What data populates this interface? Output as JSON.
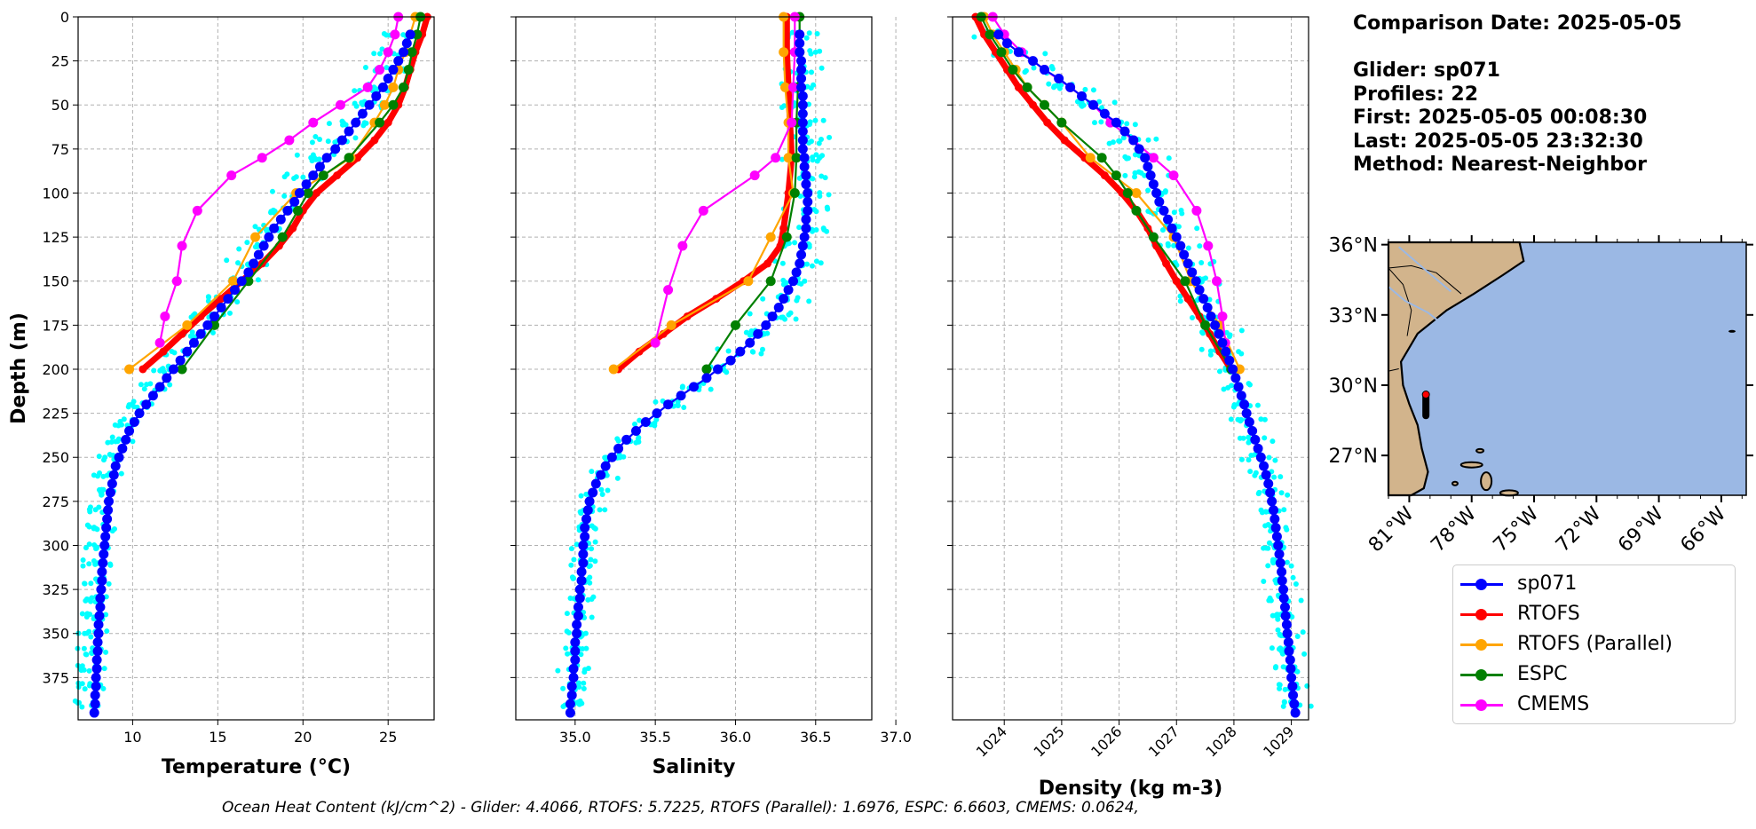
{
  "info": {
    "comparison_date": "Comparison Date: 2025-05-05",
    "glider": "Glider: sp071",
    "profiles": "Profiles: 22",
    "first": "First: 2025-05-05 00:08:30",
    "last": "Last: 2025-05-05 23:32:30",
    "method": "Method: Nearest-Neighbor"
  },
  "footer": "Ocean Heat Content (kJ/cm^2) - Glider: 4.4066,  RTOFS: 5.7225,  RTOFS (Parallel): 1.6976,  ESPC: 6.6603,  CMEMS: 0.0624,",
  "colors": {
    "sp071": "#0000ff",
    "RTOFS": "#ff0000",
    "RTOFS (Parallel)": "#ffa500",
    "ESPC": "#008000",
    "CMEMS": "#ff00ff",
    "profiles": "#00ffff",
    "land": "#d2b48c",
    "ocean": "#9bb8e4"
  },
  "legend": [
    "sp071",
    "RTOFS",
    "RTOFS (Parallel)",
    "ESPC",
    "CMEMS"
  ],
  "chart_data": [
    {
      "type": "line",
      "xlabel": "Temperature (°C)",
      "ylabel": "Depth (m)",
      "xlim": [
        6.8,
        27.7
      ],
      "ylim": [
        399,
        0
      ],
      "xticks": [
        10,
        15,
        20,
        25
      ],
      "yticks": [
        0,
        25,
        50,
        75,
        100,
        125,
        150,
        175,
        200,
        225,
        250,
        275,
        300,
        325,
        350,
        375
      ],
      "grid": true,
      "series": [
        {
          "name": "sp071",
          "depth": [
            10,
            15,
            20,
            25,
            30,
            35,
            40,
            45,
            50,
            55,
            60,
            65,
            70,
            75,
            80,
            85,
            90,
            95,
            100,
            105,
            110,
            115,
            120,
            125,
            130,
            135,
            140,
            145,
            150,
            155,
            160,
            165,
            170,
            175,
            180,
            185,
            190,
            195,
            200,
            205,
            210,
            215,
            220,
            225,
            230,
            235,
            240,
            245,
            250,
            255,
            260,
            265,
            270,
            275,
            280,
            285,
            290,
            295,
            300,
            305,
            310,
            315,
            320,
            325,
            330,
            335,
            340,
            345,
            350,
            355,
            360,
            365,
            370,
            375,
            380,
            385,
            390,
            395
          ],
          "value": [
            26.3,
            26.1,
            25.9,
            25.6,
            25.3,
            25.0,
            24.7,
            24.3,
            23.9,
            23.5,
            23.1,
            22.7,
            22.3,
            21.9,
            21.4,
            21.0,
            20.6,
            20.2,
            19.8,
            19.5,
            19.1,
            18.7,
            18.3,
            18.0,
            17.7,
            17.4,
            17.1,
            16.8,
            16.4,
            16.0,
            15.6,
            15.2,
            14.8,
            14.4,
            14.0,
            13.6,
            13.2,
            12.8,
            12.4,
            12.0,
            11.6,
            11.2,
            10.8,
            10.4,
            10.1,
            9.8,
            9.6,
            9.4,
            9.2,
            9.0,
            8.9,
            8.8,
            8.7,
            8.6,
            8.55,
            8.5,
            8.45,
            8.4,
            8.35,
            8.3,
            8.25,
            8.2,
            8.2,
            8.15,
            8.1,
            8.1,
            8.05,
            8.0,
            8.0,
            7.95,
            7.95,
            7.9,
            7.9,
            7.85,
            7.85,
            7.8,
            7.8,
            7.75
          ]
        },
        {
          "name": "RTOFS",
          "depth": [
            0,
            10,
            20,
            30,
            40,
            50,
            60,
            70,
            80,
            90,
            100,
            110,
            120,
            130,
            140,
            150,
            160,
            170,
            180,
            190,
            200
          ],
          "value": [
            27.3,
            27.0,
            26.6,
            26.3,
            26.0,
            25.6,
            25.0,
            24.2,
            23.2,
            22.0,
            20.8,
            20.0,
            19.4,
            18.6,
            17.6,
            16.4,
            15.2,
            14.0,
            12.9,
            11.8,
            10.6
          ]
        },
        {
          "name": "RTOFS (Parallel)",
          "depth": [
            0,
            10,
            20,
            30,
            40,
            50,
            60,
            80,
            100,
            125,
            150,
            175,
            200
          ],
          "value": [
            26.6,
            26.3,
            26.0,
            25.6,
            25.3,
            24.8,
            24.2,
            22.8,
            19.6,
            17.2,
            15.9,
            13.2,
            9.8
          ]
        },
        {
          "name": "ESPC",
          "depth": [
            0,
            10,
            20,
            30,
            40,
            50,
            60,
            80,
            90,
            100,
            110,
            125,
            150,
            175,
            200
          ],
          "value": [
            26.9,
            26.7,
            26.4,
            26.2,
            25.9,
            25.3,
            24.5,
            22.7,
            21.2,
            20.3,
            19.7,
            18.8,
            16.8,
            14.8,
            12.9
          ]
        },
        {
          "name": "CMEMS",
          "depth": [
            0,
            10,
            20,
            30,
            40,
            50,
            60,
            70,
            80,
            90,
            110,
            130,
            150,
            170,
            185
          ],
          "value": [
            25.6,
            25.4,
            25.0,
            24.5,
            23.8,
            22.2,
            20.6,
            19.2,
            17.6,
            15.8,
            13.8,
            12.9,
            12.6,
            11.9,
            11.6
          ]
        }
      ]
    },
    {
      "type": "line",
      "xlabel": "Salinity",
      "xlim": [
        34.63,
        36.85
      ],
      "ylim": [
        399,
        0
      ],
      "xticks": [
        35.0,
        35.5,
        36.0,
        36.5,
        37.0
      ],
      "grid": true,
      "series": [
        {
          "name": "sp071",
          "depth": [
            10,
            15,
            20,
            25,
            30,
            35,
            40,
            45,
            50,
            55,
            60,
            65,
            70,
            75,
            80,
            85,
            90,
            95,
            100,
            105,
            110,
            115,
            120,
            125,
            130,
            135,
            140,
            145,
            150,
            155,
            160,
            165,
            170,
            175,
            180,
            185,
            190,
            195,
            200,
            205,
            210,
            215,
            220,
            225,
            230,
            235,
            240,
            245,
            250,
            255,
            260,
            265,
            270,
            275,
            280,
            285,
            290,
            295,
            300,
            305,
            310,
            315,
            320,
            325,
            330,
            335,
            340,
            345,
            350,
            355,
            360,
            365,
            370,
            375,
            380,
            385,
            390,
            395
          ],
          "value": [
            36.4,
            36.4,
            36.4,
            36.41,
            36.41,
            36.41,
            36.41,
            36.42,
            36.42,
            36.42,
            36.42,
            36.42,
            36.42,
            36.42,
            36.43,
            36.43,
            36.44,
            36.44,
            36.45,
            36.45,
            36.45,
            36.44,
            36.44,
            36.43,
            36.42,
            36.41,
            36.4,
            36.38,
            36.36,
            36.33,
            36.3,
            36.27,
            36.23,
            36.19,
            36.14,
            36.09,
            36.03,
            35.97,
            35.89,
            35.82,
            35.74,
            35.66,
            35.58,
            35.51,
            35.44,
            35.38,
            35.32,
            35.27,
            35.23,
            35.19,
            35.16,
            35.13,
            35.11,
            35.09,
            35.08,
            35.07,
            35.06,
            35.06,
            35.05,
            35.05,
            35.05,
            35.04,
            35.04,
            35.03,
            35.03,
            35.02,
            35.02,
            35.01,
            35.01,
            35.0,
            35.0,
            35.0,
            34.99,
            34.99,
            34.98,
            34.98,
            34.97,
            34.97
          ]
        },
        {
          "name": "RTOFS",
          "depth": [
            0,
            20,
            40,
            60,
            80,
            100,
            120,
            130,
            140,
            150,
            160,
            170,
            180,
            190,
            200
          ],
          "value": [
            36.32,
            36.32,
            36.33,
            36.34,
            36.35,
            36.33,
            36.3,
            36.28,
            36.2,
            36.05,
            35.88,
            35.7,
            35.55,
            35.4,
            35.27
          ]
        },
        {
          "name": "RTOFS (Parallel)",
          "depth": [
            0,
            20,
            40,
            60,
            80,
            100,
            125,
            150,
            175,
            200
          ],
          "value": [
            36.3,
            36.3,
            36.31,
            36.33,
            36.33,
            36.36,
            36.22,
            36.08,
            35.6,
            35.24
          ]
        },
        {
          "name": "ESPC",
          "depth": [
            0,
            20,
            40,
            60,
            80,
            100,
            125,
            150,
            175,
            200
          ],
          "value": [
            36.4,
            36.4,
            36.39,
            36.38,
            36.38,
            36.37,
            36.32,
            36.22,
            36.0,
            35.82
          ]
        },
        {
          "name": "CMEMS",
          "depth": [
            0,
            20,
            40,
            60,
            80,
            90,
            110,
            130,
            155,
            185
          ],
          "value": [
            36.37,
            36.37,
            36.36,
            36.35,
            36.25,
            36.12,
            35.8,
            35.67,
            35.58,
            35.5
          ]
        }
      ]
    },
    {
      "type": "line",
      "xlabel": "Density (kg m-3)",
      "xlim": [
        1023.1,
        1029.3
      ],
      "ylim": [
        399,
        0
      ],
      "xticks": [
        1024,
        1025,
        1026,
        1027,
        1028,
        1029
      ],
      "grid": true,
      "series": [
        {
          "name": "sp071",
          "depth": [
            10,
            15,
            20,
            25,
            30,
            35,
            40,
            45,
            50,
            55,
            60,
            65,
            70,
            75,
            80,
            85,
            90,
            95,
            100,
            105,
            110,
            115,
            120,
            125,
            130,
            135,
            140,
            145,
            150,
            155,
            160,
            165,
            170,
            175,
            180,
            185,
            190,
            195,
            200,
            205,
            210,
            215,
            220,
            225,
            230,
            235,
            240,
            245,
            250,
            255,
            260,
            265,
            270,
            275,
            280,
            285,
            290,
            295,
            300,
            305,
            310,
            315,
            320,
            325,
            330,
            335,
            340,
            345,
            350,
            355,
            360,
            365,
            370,
            375,
            380,
            385,
            390,
            395
          ],
          "value": [
            1023.9,
            1024.05,
            1024.25,
            1024.5,
            1024.7,
            1024.95,
            1025.15,
            1025.35,
            1025.55,
            1025.75,
            1025.95,
            1026.1,
            1026.25,
            1026.35,
            1026.45,
            1026.5,
            1026.55,
            1026.6,
            1026.65,
            1026.7,
            1026.78,
            1026.85,
            1026.92,
            1027.0,
            1027.07,
            1027.13,
            1027.2,
            1027.27,
            1027.34,
            1027.4,
            1027.47,
            1027.54,
            1027.6,
            1027.67,
            1027.74,
            1027.8,
            1027.86,
            1027.92,
            1027.98,
            1028.03,
            1028.08,
            1028.13,
            1028.18,
            1028.22,
            1028.27,
            1028.32,
            1028.37,
            1028.42,
            1028.47,
            1028.52,
            1028.56,
            1028.6,
            1028.63,
            1028.66,
            1028.69,
            1028.71,
            1028.73,
            1028.75,
            1028.77,
            1028.79,
            1028.81,
            1028.83,
            1028.84,
            1028.86,
            1028.87,
            1028.89,
            1028.9,
            1028.92,
            1028.93,
            1028.95,
            1028.96,
            1028.98,
            1028.99,
            1029.0,
            1029.02,
            1029.03,
            1029.05,
            1029.07
          ]
        },
        {
          "name": "RTOFS",
          "depth": [
            0,
            10,
            20,
            30,
            40,
            50,
            60,
            70,
            80,
            90,
            100,
            110,
            120,
            130,
            140,
            150,
            160,
            170,
            180,
            190,
            200
          ],
          "value": [
            1023.5,
            1023.65,
            1023.85,
            1024.05,
            1024.25,
            1024.5,
            1024.75,
            1025.05,
            1025.4,
            1025.75,
            1026.05,
            1026.3,
            1026.5,
            1026.65,
            1026.82,
            1027.0,
            1027.2,
            1027.4,
            1027.58,
            1027.75,
            1027.95
          ]
        },
        {
          "name": "RTOFS (Parallel)",
          "depth": [
            0,
            10,
            20,
            30,
            40,
            50,
            60,
            80,
            100,
            125,
            150,
            175,
            200
          ],
          "value": [
            1023.65,
            1023.8,
            1024.0,
            1024.2,
            1024.4,
            1024.7,
            1025.0,
            1025.5,
            1026.3,
            1026.95,
            1027.25,
            1027.75,
            1028.1
          ]
        },
        {
          "name": "ESPC",
          "depth": [
            0,
            10,
            20,
            30,
            40,
            50,
            60,
            80,
            90,
            100,
            110,
            125,
            150,
            175,
            200
          ],
          "value": [
            1023.6,
            1023.75,
            1023.95,
            1024.15,
            1024.4,
            1024.7,
            1025.0,
            1025.7,
            1025.95,
            1026.15,
            1026.3,
            1026.6,
            1027.15,
            1027.5,
            1027.95
          ]
        },
        {
          "name": "CMEMS",
          "depth": [
            0,
            10,
            20,
            30,
            40,
            50,
            60,
            70,
            80,
            90,
            110,
            130,
            150,
            170,
            185
          ],
          "value": [
            1023.8,
            1024.0,
            1024.3,
            1024.7,
            1025.15,
            1025.55,
            1025.85,
            1026.25,
            1026.6,
            1026.95,
            1027.35,
            1027.55,
            1027.7,
            1027.8,
            1027.85
          ]
        }
      ]
    }
  ],
  "map": {
    "lat_ticks": [
      "36°N",
      "33°N",
      "30°N",
      "27°N"
    ],
    "lon_ticks": [
      "81°W",
      "78°W",
      "75°W",
      "72°W",
      "69°W",
      "66°W"
    ],
    "lat_range": [
      25.3,
      36.1
    ],
    "lon_range": [
      -82.0,
      -64.8
    ],
    "glider_track": {
      "lon": -80.2,
      "lat_start": 29.6,
      "lat_end": 28.7
    }
  }
}
